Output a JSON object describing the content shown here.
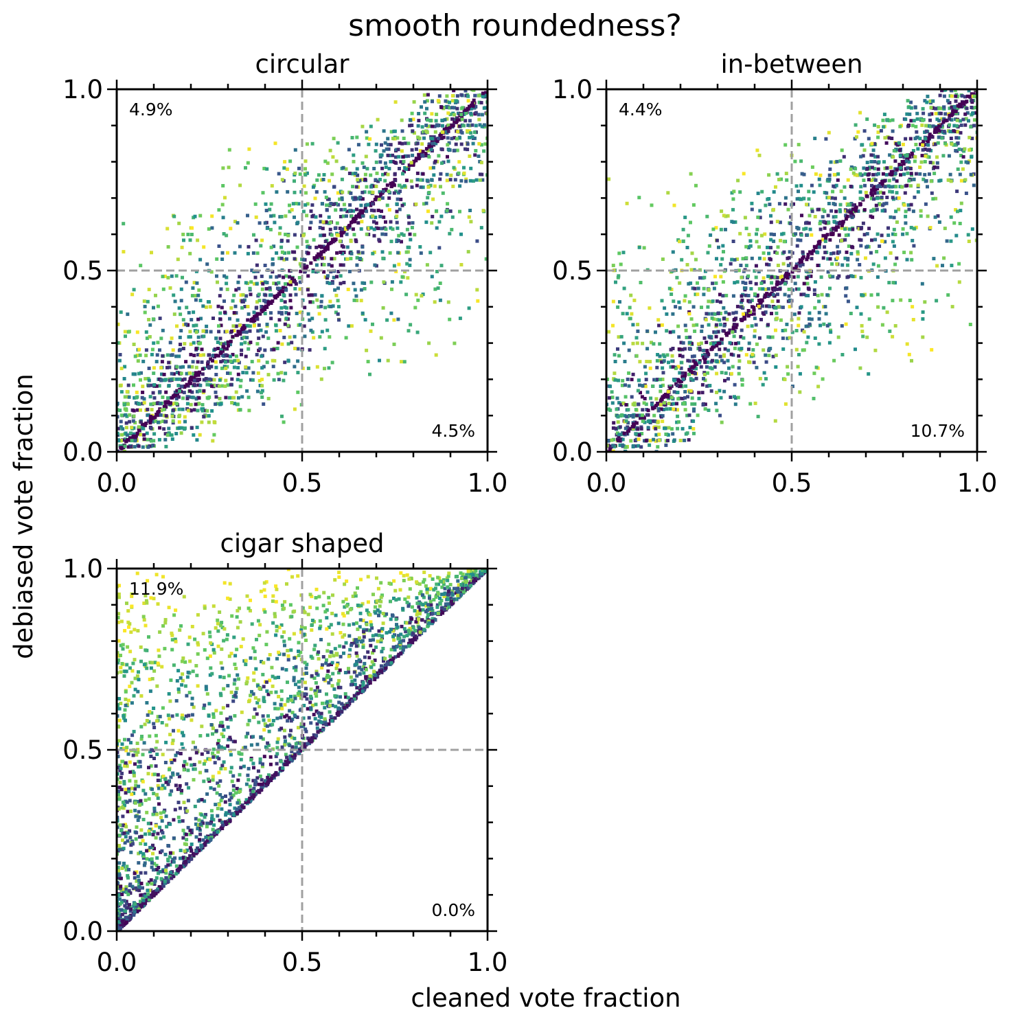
{
  "figure": {
    "title": "smooth roundedness?",
    "xlabel": "cleaned vote fraction",
    "ylabel": "debiased vote fraction"
  },
  "colormap": [
    "#440154",
    "#3b528b",
    "#21918c",
    "#5ec962",
    "#fde725"
  ],
  "reference_line_color": "#a0a0a0",
  "chart_data": [
    {
      "type": "scatter",
      "title": "circular",
      "xlim": [
        0,
        1
      ],
      "ylim": [
        0,
        1
      ],
      "xticks": [
        "0.0",
        "0.5",
        "1.0"
      ],
      "yticks": [
        "0.0",
        "0.5",
        "1.0"
      ],
      "reference_lines": {
        "x": 0.5,
        "y": 0.5,
        "style": "dashed"
      },
      "annotations": {
        "upper_left": "4.9%",
        "lower_right": "4.5%"
      },
      "pattern": "horizontal streaks spread around the y = x diagonal"
    },
    {
      "type": "scatter",
      "title": "in-between",
      "xlim": [
        0,
        1
      ],
      "ylim": [
        0,
        1
      ],
      "xticks": [
        "0.0",
        "0.5",
        "1.0"
      ],
      "yticks": [
        "0.0",
        "0.5",
        "1.0"
      ],
      "reference_lines": {
        "x": 0.5,
        "y": 0.5,
        "style": "dashed"
      },
      "annotations": {
        "upper_left": "4.4%",
        "lower_right": "10.7%"
      },
      "pattern": "horizontal streaks spread around the y = x diagonal"
    },
    {
      "type": "scatter",
      "title": "cigar shaped",
      "xlim": [
        0,
        1
      ],
      "ylim": [
        0,
        1
      ],
      "xticks": [
        "0.0",
        "0.5",
        "1.0"
      ],
      "yticks": [
        "0.0",
        "0.5",
        "1.0"
      ],
      "reference_lines": {
        "x": 0.5,
        "y": 0.5,
        "style": "dashed"
      },
      "annotations": {
        "upper_left": "11.9%",
        "lower_right": "0.0%"
      },
      "pattern": "points lie on or above the y = x diagonal, concentrated toward high debiased fractions"
    }
  ]
}
